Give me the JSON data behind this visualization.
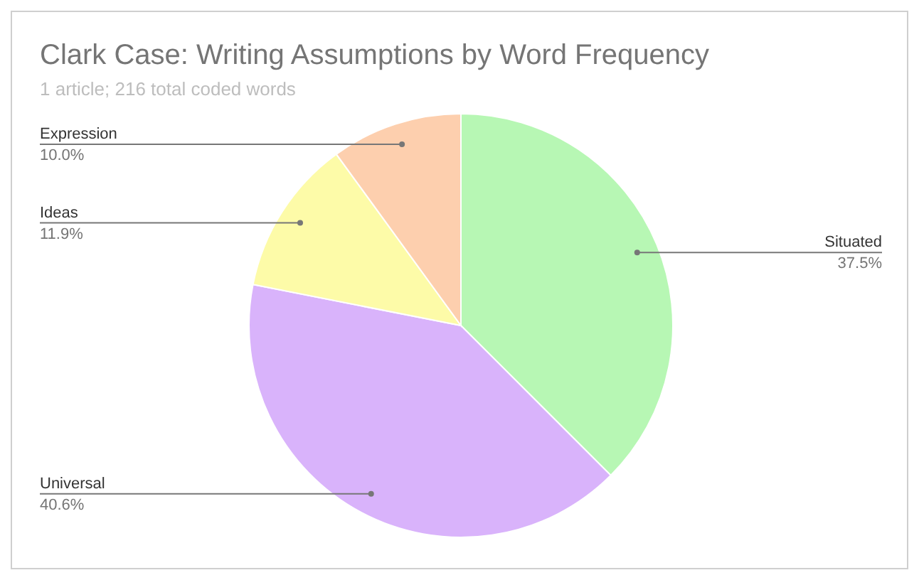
{
  "chart_data": {
    "type": "pie",
    "title": "Clark Case: Writing Assumptions by Word Frequency",
    "subtitle": "1 article; 216 total coded words",
    "categories": [
      "Situated",
      "Universal",
      "Ideas",
      "Expression"
    ],
    "values": [
      37.5,
      40.6,
      11.9,
      10.0
    ],
    "colors": [
      "#b7f7b4",
      "#d9b3fb",
      "#fdfba8",
      "#fdcfae"
    ],
    "value_labels": [
      "37.5%",
      "40.6%",
      "11.9%",
      "10.0%"
    ]
  }
}
